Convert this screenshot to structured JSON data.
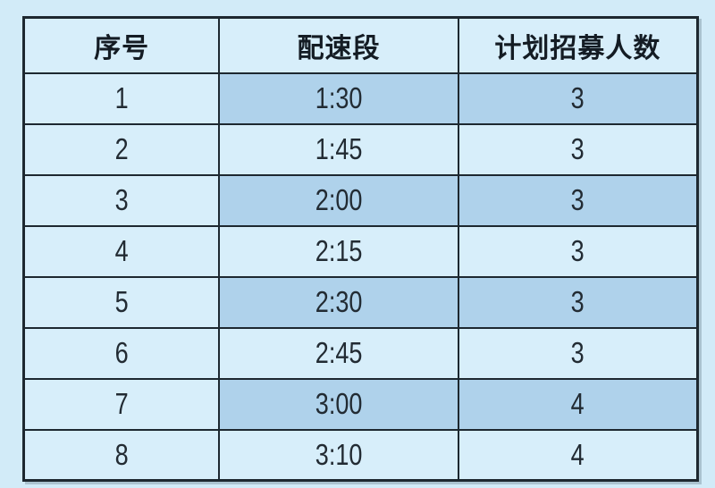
{
  "colors": {
    "page_background": "#d2ebf8",
    "cell_light": "#d7eefa",
    "cell_dark": "#afd2eb",
    "grid_border": "#1d2830",
    "text": "#1e262e"
  },
  "table": {
    "headers": [
      "序号",
      "配速段",
      "计划招募人数"
    ],
    "rows": [
      [
        "1",
        "1:30",
        "3"
      ],
      [
        "2",
        "1:45",
        "3"
      ],
      [
        "3",
        "2:00",
        "3"
      ],
      [
        "4",
        "2:15",
        "3"
      ],
      [
        "5",
        "2:30",
        "3"
      ],
      [
        "6",
        "2:45",
        "3"
      ],
      [
        "7",
        "3:00",
        "4"
      ],
      [
        "8",
        "3:10",
        "4"
      ]
    ]
  },
  "chart_data": {
    "type": "table",
    "columns": [
      "序号",
      "配速段",
      "计划招募人数"
    ],
    "rows": [
      [
        1,
        "1:30",
        3
      ],
      [
        2,
        "1:45",
        3
      ],
      [
        3,
        "2:00",
        3
      ],
      [
        4,
        "2:15",
        3
      ],
      [
        5,
        "2:30",
        3
      ],
      [
        6,
        "2:45",
        3
      ],
      [
        7,
        "3:00",
        4
      ],
      [
        8,
        "3:10",
        4
      ]
    ],
    "notes": "Pace segments (配速段) with planned recruitment headcount (计划招募人数); odd rows highlighted darker blue in columns 2-3"
  }
}
